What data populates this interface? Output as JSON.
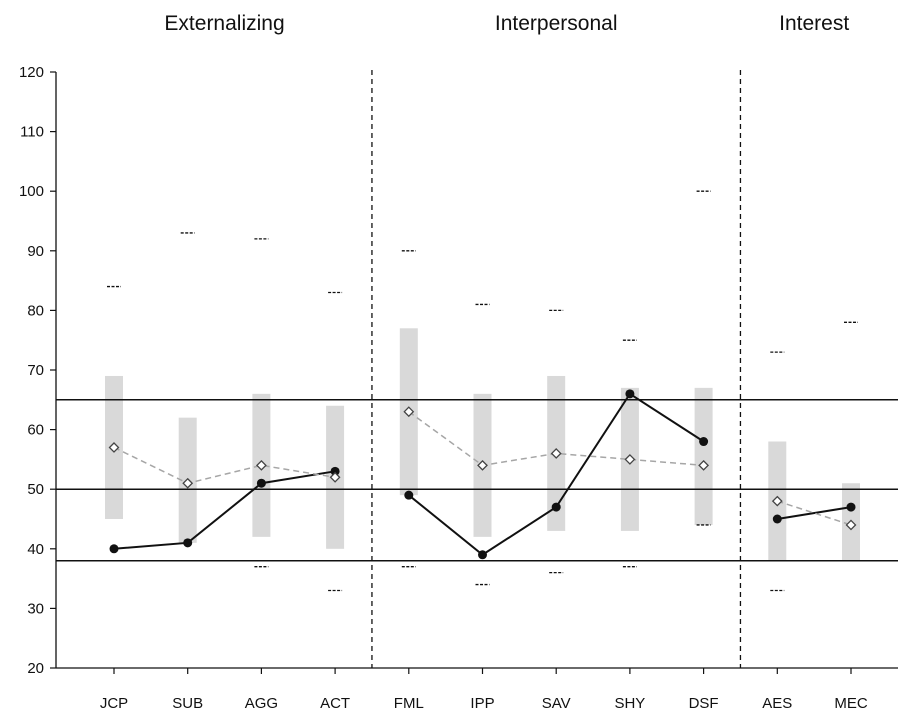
{
  "chart_data": {
    "type": "line",
    "ylim": [
      20,
      120
    ],
    "yticks": [
      20,
      30,
      40,
      50,
      60,
      70,
      80,
      90,
      100,
      110,
      120
    ],
    "categories": [
      "JCP",
      "SUB",
      "AGG",
      "ACT",
      "FML",
      "IPP",
      "SAV",
      "SHY",
      "DSF",
      "AES",
      "MEC"
    ],
    "groups": [
      {
        "title": "Externalizing",
        "categories": [
          "JCP",
          "SUB",
          "AGG",
          "ACT"
        ]
      },
      {
        "title": "Interpersonal",
        "categories": [
          "FML",
          "IPP",
          "SAV",
          "SHY",
          "DSF"
        ]
      },
      {
        "title": "Interest",
        "categories": [
          "AES",
          "MEC"
        ]
      }
    ],
    "reference_lines": [
      38,
      50,
      65
    ],
    "ranges": [
      {
        "category": "JCP",
        "low": 45,
        "high": 69
      },
      {
        "category": "SUB",
        "low": 41,
        "high": 62
      },
      {
        "category": "AGG",
        "low": 42,
        "high": 66
      },
      {
        "category": "ACT",
        "low": 40,
        "high": 64
      },
      {
        "category": "FML",
        "low": 49,
        "high": 77
      },
      {
        "category": "IPP",
        "low": 42,
        "high": 66
      },
      {
        "category": "SAV",
        "low": 43,
        "high": 69
      },
      {
        "category": "SHY",
        "low": 43,
        "high": 67
      },
      {
        "category": "DSF",
        "low": 44,
        "high": 67
      },
      {
        "category": "AES",
        "low": 38,
        "high": 58
      },
      {
        "category": "MEC",
        "low": 38,
        "high": 51
      }
    ],
    "dash_marks": [
      {
        "category": "JCP",
        "high": 84
      },
      {
        "category": "SUB",
        "high": 93
      },
      {
        "category": "AGG",
        "high": 92,
        "low": 37
      },
      {
        "category": "ACT",
        "high": 83,
        "low": 33
      },
      {
        "category": "FML",
        "high": 90,
        "low": 37
      },
      {
        "category": "IPP",
        "high": 81,
        "low": 34
      },
      {
        "category": "SAV",
        "high": 80,
        "low": 36
      },
      {
        "category": "SHY",
        "high": 75,
        "low": 37
      },
      {
        "category": "DSF",
        "high": 100,
        "low": 44
      },
      {
        "category": "AES",
        "high": 73,
        "low": 33
      },
      {
        "category": "MEC",
        "high": 78
      }
    ],
    "series": [
      {
        "style": "solid-filled-dot",
        "color": "#111111",
        "values": [
          40,
          41,
          51,
          53,
          49,
          39,
          47,
          66,
          58,
          45,
          47
        ]
      },
      {
        "style": "dashed-open-diamond",
        "color": "#a6a6a6",
        "values": [
          57,
          51,
          54,
          52,
          63,
          54,
          56,
          55,
          54,
          48,
          44
        ]
      }
    ]
  }
}
